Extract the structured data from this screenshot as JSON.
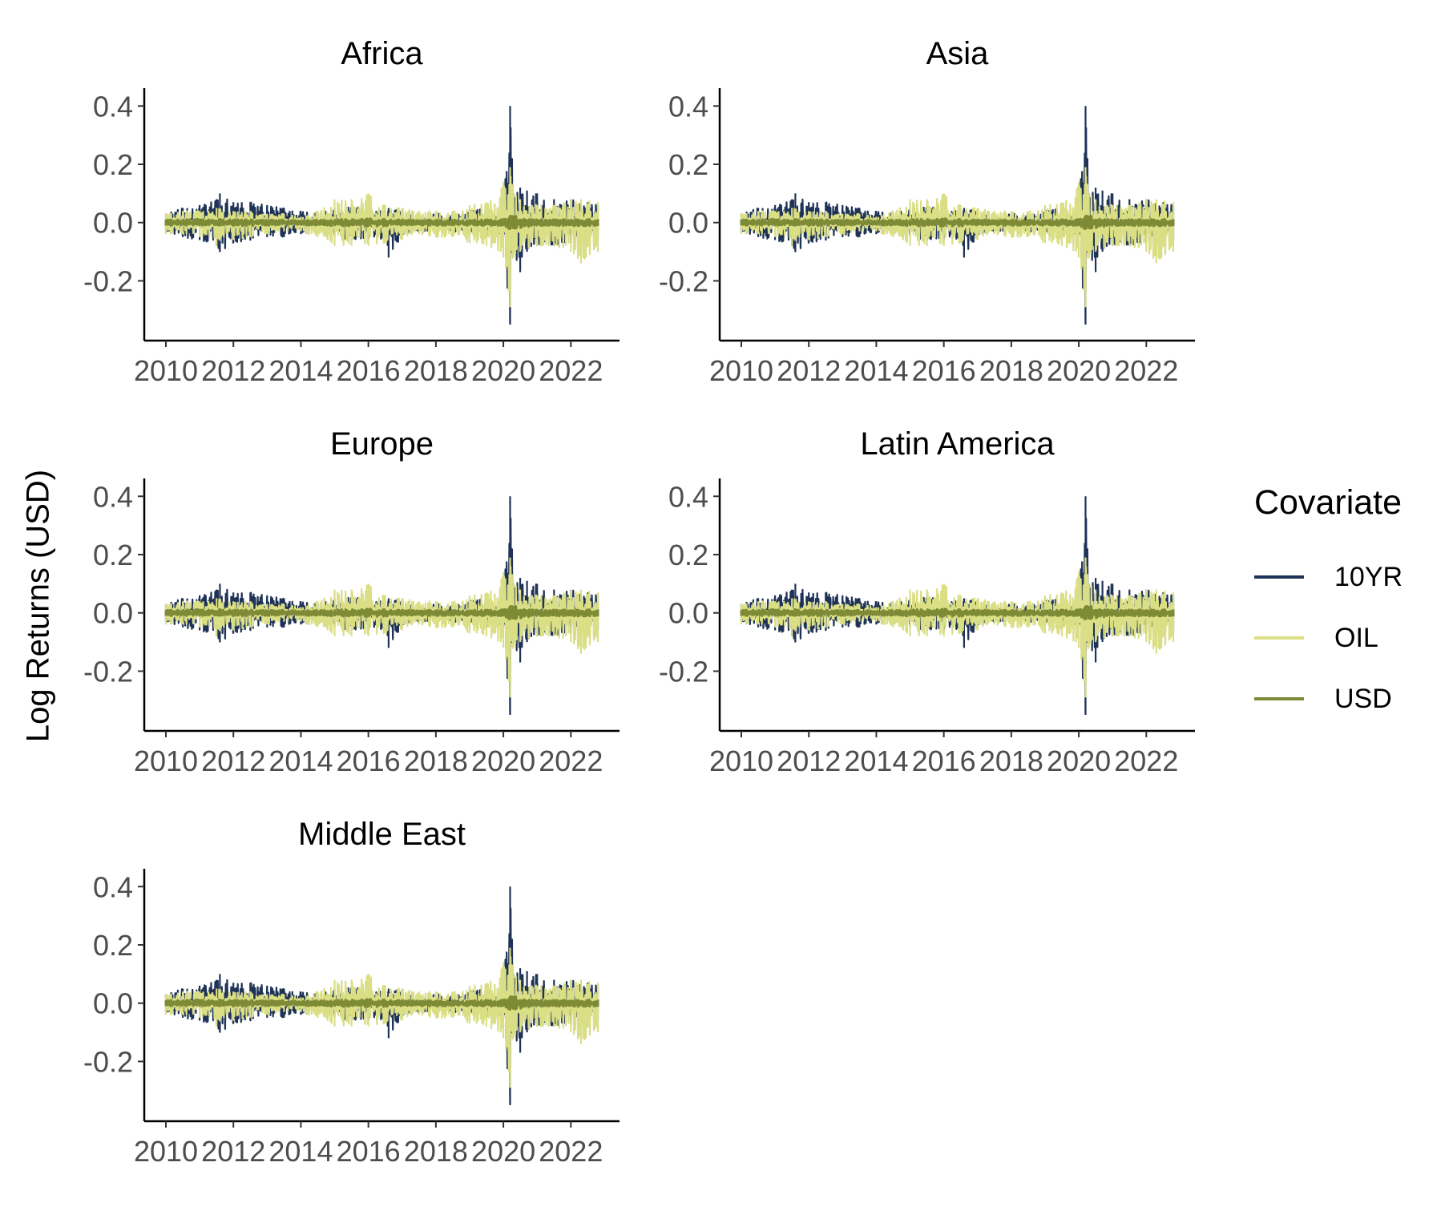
{
  "chart_data": {
    "type": "line",
    "ylabel": "Log Returns (USD)",
    "xlabel": "",
    "xlim": [
      2010,
      2022.8
    ],
    "ylim": [
      -0.35,
      0.42
    ],
    "xticks": [
      "2010",
      "2012",
      "2014",
      "2016",
      "2018",
      "2020",
      "2022"
    ],
    "yticks": [
      "-0.2",
      "0.0",
      "0.2",
      "0.4"
    ],
    "grid": false,
    "legend": {
      "title": "Covariate",
      "position": "right",
      "entries": [
        {
          "name": "10YR",
          "color": "#1f3356"
        },
        {
          "name": "OIL",
          "color": "#dade85"
        },
        {
          "name": "USD",
          "color": "#7d8a36"
        }
      ]
    },
    "panels": [
      {
        "title": "Africa"
      },
      {
        "title": "Asia"
      },
      {
        "title": "Europe"
      },
      {
        "title": "Latin America"
      },
      {
        "title": "Middle East"
      }
    ],
    "series": [
      {
        "name": "10YR",
        "color": "#1f3356",
        "x": [
          2010.0,
          2010.5,
          2011.0,
          2011.5,
          2011.6,
          2012.0,
          2012.5,
          2013.0,
          2013.5,
          2014.0,
          2014.5,
          2015.0,
          2015.5,
          2016.0,
          2016.5,
          2016.6,
          2017.0,
          2017.5,
          2018.0,
          2018.5,
          2019.0,
          2019.5,
          2020.0,
          2020.2,
          2020.3,
          2020.5,
          2020.7,
          2021.0,
          2021.5,
          2022.0,
          2022.5,
          2022.8
        ],
        "high": [
          0.03,
          0.05,
          0.06,
          0.08,
          0.1,
          0.07,
          0.07,
          0.06,
          0.05,
          0.04,
          0.03,
          0.05,
          0.06,
          0.05,
          0.04,
          0.05,
          0.04,
          0.03,
          0.03,
          0.03,
          0.04,
          0.05,
          0.05,
          0.4,
          0.1,
          0.12,
          0.11,
          0.1,
          0.08,
          0.08,
          0.07,
          0.06
        ],
        "low": [
          -0.03,
          -0.05,
          -0.06,
          -0.08,
          -0.1,
          -0.07,
          -0.06,
          -0.05,
          -0.05,
          -0.04,
          -0.03,
          -0.05,
          -0.06,
          -0.06,
          -0.06,
          -0.12,
          -0.05,
          -0.03,
          -0.03,
          -0.03,
          -0.04,
          -0.05,
          -0.05,
          -0.35,
          -0.1,
          -0.17,
          -0.1,
          -0.08,
          -0.08,
          -0.07,
          -0.07,
          -0.06
        ]
      },
      {
        "name": "OIL",
        "color": "#dade85",
        "x": [
          2010.0,
          2010.5,
          2011.0,
          2011.5,
          2012.0,
          2012.5,
          2013.0,
          2013.5,
          2014.0,
          2014.5,
          2015.0,
          2015.5,
          2016.0,
          2016.5,
          2017.0,
          2017.5,
          2018.0,
          2018.5,
          2019.0,
          2019.5,
          2020.0,
          2020.2,
          2020.3,
          2020.5,
          2021.0,
          2021.5,
          2022.0,
          2022.3,
          2022.8
        ],
        "high": [
          0.03,
          0.04,
          0.04,
          0.05,
          0.04,
          0.04,
          0.03,
          0.03,
          0.02,
          0.04,
          0.08,
          0.08,
          0.1,
          0.06,
          0.05,
          0.04,
          0.04,
          0.04,
          0.06,
          0.07,
          0.14,
          0.19,
          0.1,
          0.08,
          0.06,
          0.06,
          0.08,
          0.08,
          0.07
        ],
        "low": [
          -0.04,
          -0.04,
          -0.05,
          -0.08,
          -0.06,
          -0.05,
          -0.04,
          -0.03,
          -0.03,
          -0.05,
          -0.08,
          -0.08,
          -0.08,
          -0.07,
          -0.06,
          -0.04,
          -0.05,
          -0.05,
          -0.07,
          -0.08,
          -0.12,
          -0.29,
          -0.12,
          -0.1,
          -0.08,
          -0.08,
          -0.1,
          -0.14,
          -0.1
        ]
      },
      {
        "name": "USD",
        "color": "#7d8a36",
        "x": [
          2010.0,
          2011.0,
          2012.0,
          2013.0,
          2014.0,
          2015.0,
          2016.0,
          2017.0,
          2018.0,
          2019.0,
          2020.0,
          2020.2,
          2021.0,
          2022.0,
          2022.8
        ],
        "high": [
          0.01,
          0.012,
          0.012,
          0.01,
          0.008,
          0.012,
          0.014,
          0.01,
          0.01,
          0.01,
          0.012,
          0.025,
          0.01,
          0.012,
          0.012
        ],
        "low": [
          -0.01,
          -0.012,
          -0.012,
          -0.01,
          -0.008,
          -0.012,
          -0.014,
          -0.01,
          -0.01,
          -0.01,
          -0.012,
          -0.025,
          -0.01,
          -0.012,
          -0.012
        ]
      }
    ]
  }
}
